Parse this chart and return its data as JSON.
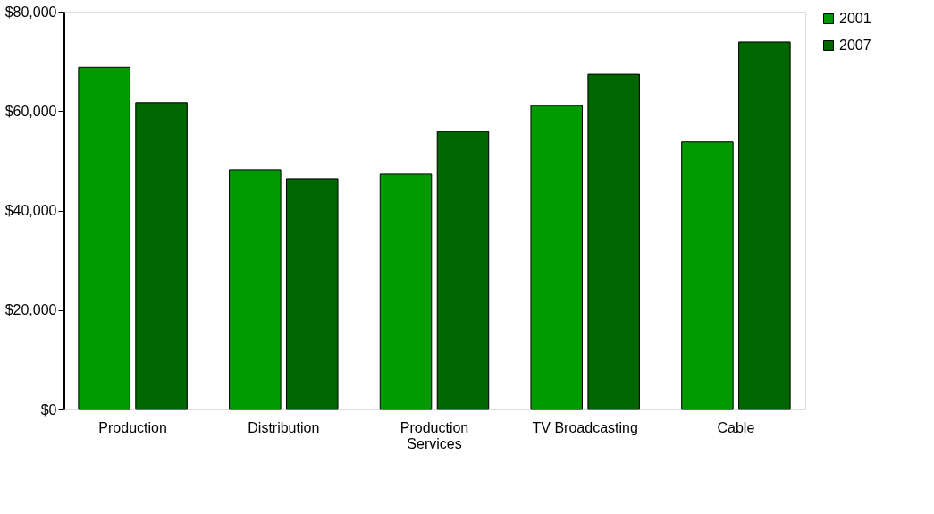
{
  "chart_data": {
    "type": "bar",
    "categories": [
      "Production",
      "Distribution",
      "Production Services",
      "TV Broadcasting",
      "Cable"
    ],
    "series": [
      {
        "name": "2001",
        "color": "#009900",
        "values": [
          68800,
          48200,
          47300,
          61100,
          53800
        ]
      },
      {
        "name": "2007",
        "color": "#006600",
        "values": [
          61700,
          46400,
          55900,
          67400,
          73900
        ]
      }
    ],
    "ylim": [
      0,
      80000
    ],
    "yticks": [
      {
        "value": 0,
        "label": "$0"
      },
      {
        "value": 20000,
        "label": "$20,000"
      },
      {
        "value": 40000,
        "label": "$40,000"
      },
      {
        "value": 60000,
        "label": "$60,000"
      },
      {
        "value": 80000,
        "label": "$80,000"
      }
    ],
    "grid": false,
    "legend": "right"
  }
}
